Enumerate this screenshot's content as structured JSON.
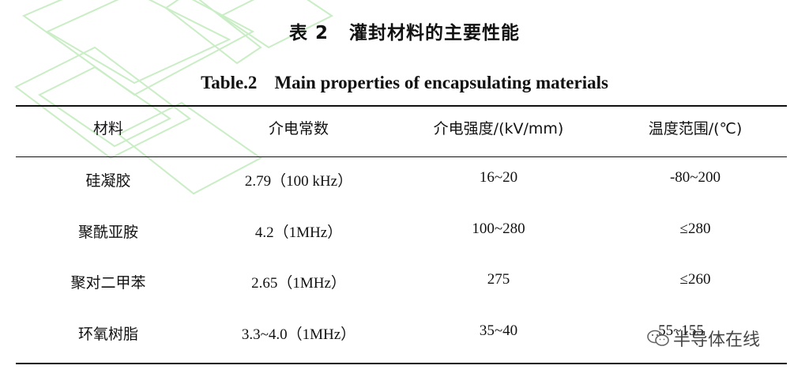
{
  "caption": {
    "cn_number": "表 2",
    "cn_title": "灌封材料的主要性能",
    "en_number": "Table.2",
    "en_title": "Main properties of encapsulating materials"
  },
  "table": {
    "headers": [
      "材料",
      "介电常数",
      "介电强度/(kV/mm)",
      "温度范围/(℃)"
    ],
    "rows": [
      [
        "硅凝胶",
        "2.79（100 kHz）",
        "16~20",
        "-80~200"
      ],
      [
        "聚酰亚胺",
        "4.2（1MHz）",
        "100~280",
        "≤280"
      ],
      [
        "聚对二甲苯",
        "2.65（1MHz）",
        "275",
        "≤260"
      ],
      [
        "环氧树脂",
        "3.3~4.0（1MHz）",
        "35~40",
        "55~155"
      ]
    ]
  },
  "watermark": {
    "text": "半导体在线",
    "icon": "wechat-icon",
    "color": "#bfe8b8"
  }
}
